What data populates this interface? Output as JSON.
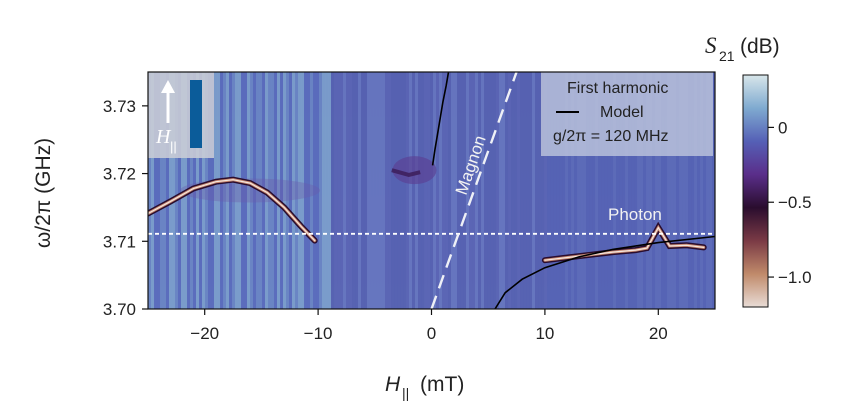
{
  "chart_data": {
    "type": "heatmap",
    "xlabel": "H",
    "xlabel_sub": "||",
    "xlabel_unit": "(mT)",
    "ylabel": "ω/2π (GHz)",
    "xlim": [
      -25,
      25
    ],
    "ylim": [
      3.7,
      3.735
    ],
    "xticks": [
      -20,
      -10,
      0,
      10,
      20
    ],
    "yticks": [
      3.7,
      3.71,
      3.72,
      3.73
    ],
    "xtick_labels": [
      "−20",
      "−10",
      "0",
      "10",
      "20"
    ],
    "ytick_labels": [
      "3.70",
      "3.71",
      "3.72",
      "3.73"
    ],
    "colorbar": {
      "label": "S",
      "label_sub": "21",
      "label_unit": "(dB)",
      "range": [
        -1.2,
        0.35
      ],
      "ticks": [
        0,
        -0.5,
        -1.0
      ],
      "tick_labels": [
        "0",
        "−0.5",
        "−1.0"
      ],
      "colors": [
        "#e8dcd6",
        "#c08a6a",
        "#7a3a45",
        "#2a0d2e",
        "#5a2e8a",
        "#5560b6",
        "#7faad0",
        "#d8e6ea"
      ]
    },
    "legend": {
      "title": "First harmonic",
      "entries": [
        "Model"
      ],
      "extra": "g/2π = 120 MHz",
      "placement": "top-right"
    },
    "annotations": {
      "magnon": "Magnon",
      "photon": "Photon",
      "inset_field": "H",
      "inset_field_sub": "||"
    },
    "photon_frequency": 3.7111,
    "magnon_line": [
      [
        0,
        3.7
      ],
      [
        7.5,
        3.735
      ]
    ],
    "model_upper_branch": [
      [
        0.1,
        3.7212
      ],
      [
        0.3,
        3.7235
      ],
      [
        0.6,
        3.7265
      ],
      [
        1.0,
        3.7305
      ],
      [
        1.3,
        3.733
      ],
      [
        1.5,
        3.735
      ]
    ],
    "model_lower_branch": [
      [
        5.6,
        3.7
      ],
      [
        6.5,
        3.7024
      ],
      [
        8,
        3.7044
      ],
      [
        10,
        3.7061
      ],
      [
        13,
        3.7077
      ],
      [
        16,
        3.7088
      ],
      [
        20,
        3.7098
      ],
      [
        25,
        3.7107
      ]
    ],
    "resonance_left": [
      [
        -25,
        3.7141
      ],
      [
        -23,
        3.7159
      ],
      [
        -21,
        3.7178
      ],
      [
        -19,
        3.7188
      ],
      [
        -17.5,
        3.7191
      ],
      [
        -16,
        3.7186
      ],
      [
        -14.5,
        3.7172
      ],
      [
        -13,
        3.715
      ],
      [
        -11.5,
        3.7122
      ],
      [
        -10.3,
        3.7101
      ]
    ],
    "resonance_right": [
      [
        10,
        3.7072
      ],
      [
        12,
        3.7076
      ],
      [
        14,
        3.708
      ],
      [
        16,
        3.7084
      ],
      [
        18,
        3.7087
      ],
      [
        19,
        3.709
      ],
      [
        20,
        3.712
      ],
      [
        21,
        3.7093
      ],
      [
        22.5,
        3.7094
      ],
      [
        24,
        3.7091
      ]
    ],
    "anticrossing_feature": [
      [
        -3.5,
        3.7205
      ],
      [
        -2,
        3.7198
      ],
      [
        -1,
        3.7202
      ]
    ]
  }
}
